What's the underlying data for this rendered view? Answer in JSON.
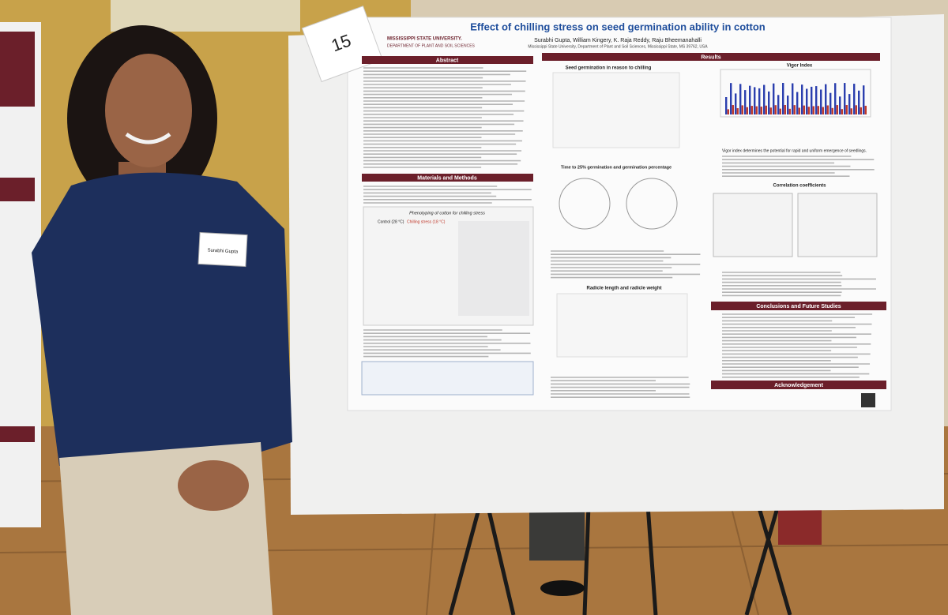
{
  "poster_number": "15",
  "poster": {
    "university": "MISSISSIPPI STATE UNIVERSITY.",
    "department": "DEPARTMENT OF PLANT AND SOIL SCIENCES",
    "title": "Effect of chilling stress on seed germination ability in cotton",
    "authors": "Surabhi Gupta, William Kingery, K. Raja Reddy, Raju Bheemanahalli",
    "affiliation": "Mississippi State University, Department of Plant and Soil Sciences, Mississippi State, MS 39762, USA",
    "sections": {
      "abstract": "Abstract",
      "methods": "Materials and Methods",
      "results": "Results",
      "conclusions": "Conclusions and Future Studies",
      "acknowledgement": "Acknowledgement"
    },
    "phenotyping": {
      "title": "Phenotyping of cotton for chilling stress",
      "control": "Control (28 °C)",
      "chilling": "Chilling stress (18 °C)"
    },
    "figures": {
      "germination": "Seed germination in reason to chilling",
      "time": "Time to 25% germination and germination percentage",
      "radicle": "Radicle length and radicle weight",
      "vigor": "Vigor Index",
      "correlation": "Correlation coefficients"
    },
    "results_note": "Vigor index determines the potential for rapid and uniform emergence of seedlings."
  },
  "name_tag": "Surabhi Gupta"
}
